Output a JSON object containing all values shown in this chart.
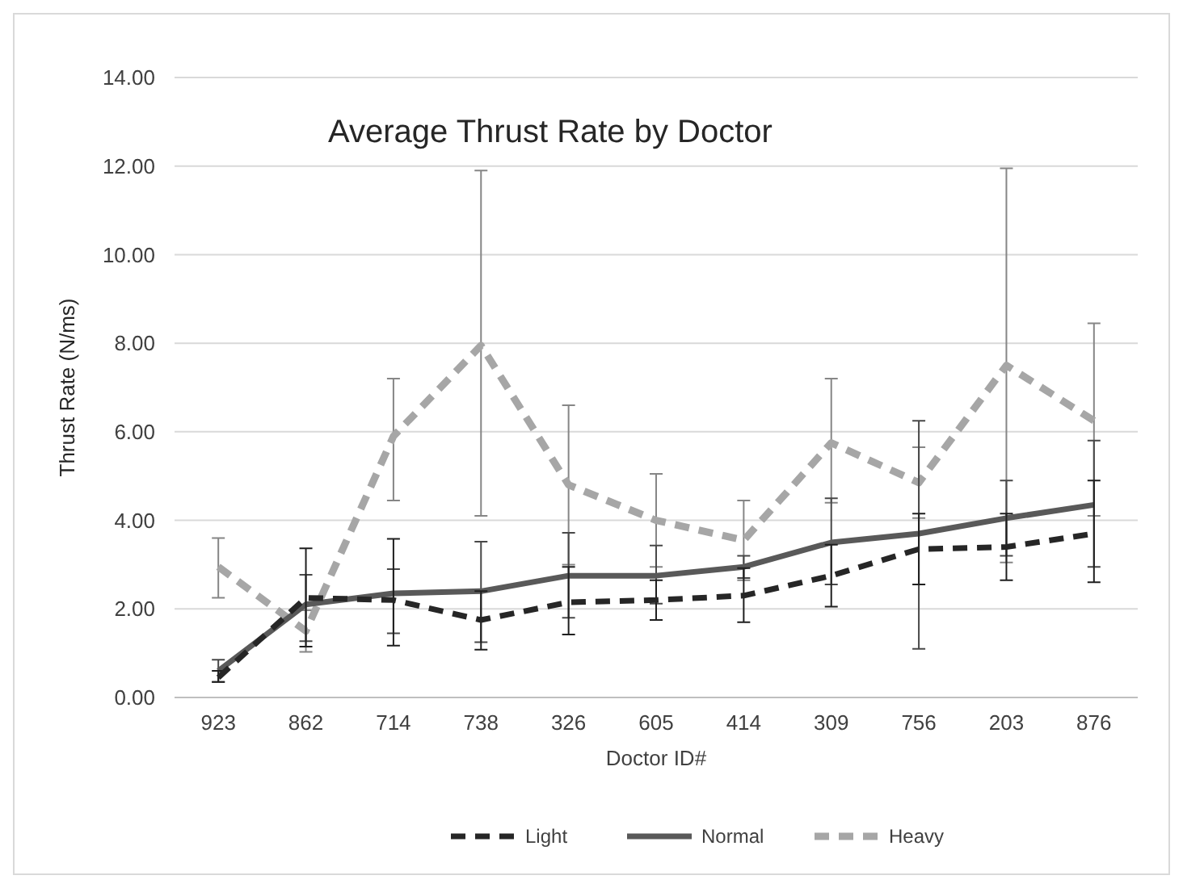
{
  "chart_data": {
    "type": "line",
    "title": "Average Thrust Rate by Doctor",
    "xlabel": "Doctor ID#",
    "ylabel": "Thrust Rate (N/ms)",
    "categories": [
      "923",
      "862",
      "714",
      "738",
      "326",
      "605",
      "414",
      "309",
      "756",
      "203",
      "876"
    ],
    "ylim": [
      0,
      14
    ],
    "yticks": [
      {
        "value": 0,
        "label": "0.00"
      },
      {
        "value": 2,
        "label": "2.00"
      },
      {
        "value": 4,
        "label": "4.00"
      },
      {
        "value": 6,
        "label": "6.00"
      },
      {
        "value": 8,
        "label": "8.00"
      },
      {
        "value": 10,
        "label": "10.00"
      },
      {
        "value": 12,
        "label": "12.00"
      },
      {
        "value": 14,
        "label": "14.00"
      }
    ],
    "grid": "y",
    "legend": "bottom",
    "marker": "none",
    "series": [
      {
        "name": "Light",
        "color": "#262626",
        "line_style": "dashed",
        "values": [
          0.45,
          2.25,
          2.2,
          1.75,
          2.15,
          2.2,
          2.3,
          2.75,
          3.35,
          3.4,
          3.7
        ],
        "errors": [
          [
            0.35,
            0.6
          ],
          [
            1.15,
            3.37
          ],
          [
            1.17,
            3.58
          ],
          [
            1.08,
            2.4
          ],
          [
            1.42,
            2.95
          ],
          [
            1.75,
            2.65
          ],
          [
            1.7,
            2.92
          ],
          [
            2.05,
            3.45
          ],
          [
            2.55,
            4.15
          ],
          [
            2.65,
            4.15
          ],
          [
            2.6,
            4.9
          ]
        ]
      },
      {
        "name": "Normal",
        "color": "#595959",
        "line_style": "solid",
        "values": [
          0.6,
          2.1,
          2.35,
          2.4,
          2.75,
          2.75,
          2.95,
          3.5,
          3.7,
          4.05,
          4.35
        ],
        "errors": [
          [
            0.35,
            0.85
          ],
          [
            1.27,
            2.77
          ],
          [
            1.45,
            2.9
          ],
          [
            1.25,
            3.52
          ],
          [
            1.8,
            3.72
          ],
          [
            2.12,
            3.43
          ],
          [
            2.7,
            3.2
          ],
          [
            2.55,
            4.5
          ],
          [
            1.1,
            6.25
          ],
          [
            3.2,
            4.9
          ],
          [
            2.95,
            5.8
          ]
        ]
      },
      {
        "name": "Heavy",
        "color": "#a6a6a6",
        "line_style": "dashed",
        "values": [
          2.95,
          1.5,
          5.9,
          7.95,
          4.8,
          4.0,
          3.55,
          5.75,
          4.85,
          7.5,
          6.25
        ],
        "errors": [
          [
            2.25,
            3.6
          ],
          [
            1.03,
            1.97
          ],
          [
            4.45,
            7.2
          ],
          [
            4.1,
            11.9
          ],
          [
            3.0,
            6.6
          ],
          [
            2.95,
            5.05
          ],
          [
            2.65,
            4.45
          ],
          [
            4.4,
            7.2
          ],
          [
            4.05,
            5.65
          ],
          [
            3.05,
            11.95
          ],
          [
            4.1,
            8.45
          ]
        ]
      }
    ]
  }
}
